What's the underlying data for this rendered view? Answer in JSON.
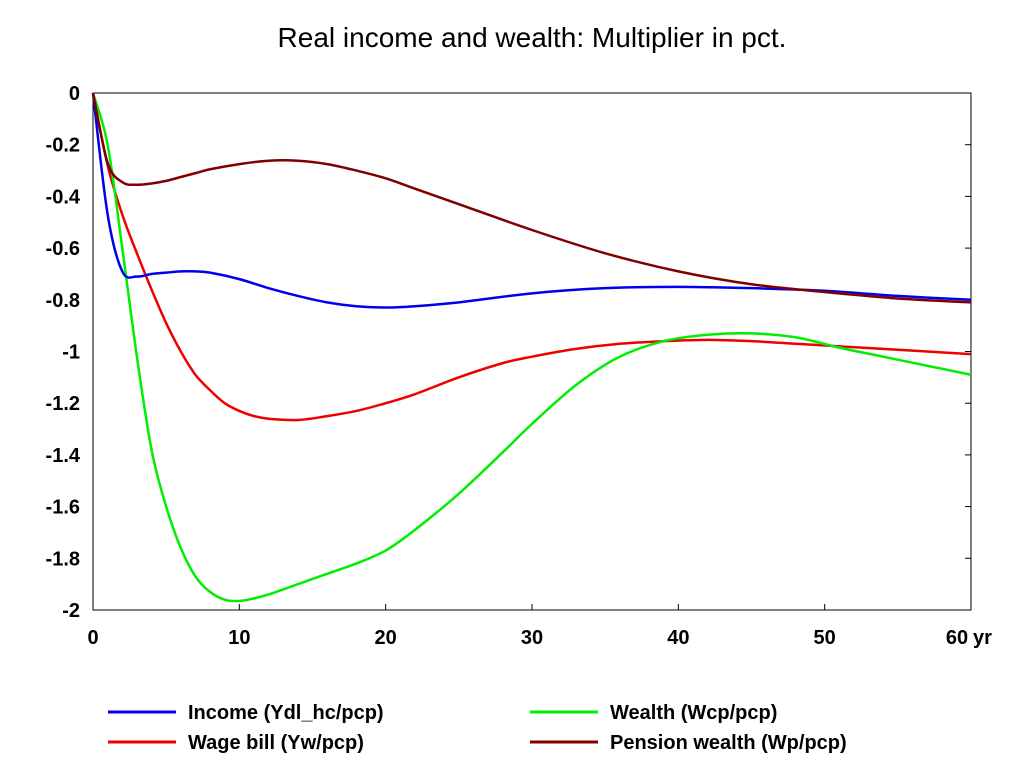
{
  "chart_data": {
    "type": "line",
    "title": "Real income and wealth: Multiplier in pct.",
    "xlabel": "",
    "ylabel": "",
    "x_unit_label": "yr",
    "xlim": [
      0,
      60
    ],
    "ylim": [
      -2,
      0
    ],
    "x_ticks": [
      0,
      10,
      20,
      30,
      40,
      50,
      60
    ],
    "x_tick_labels": [
      "0",
      "10",
      "20",
      "30",
      "40",
      "50",
      "60"
    ],
    "y_ticks": [
      0,
      -0.2,
      -0.4,
      -0.6,
      -0.8,
      -1,
      -1.2,
      -1.4,
      -1.6,
      -1.8,
      -2
    ],
    "y_tick_labels": [
      "0",
      "-0.2",
      "-0.4",
      "-0.6",
      "-0.8",
      "-1",
      "-1.2",
      "-1.4",
      "-1.6",
      "-1.8",
      "-2"
    ],
    "grid": false,
    "legend_position": "bottom",
    "series": [
      {
        "name": "Income (Ydl_hc/pcp)",
        "color": "#0000ee",
        "x": [
          0,
          1,
          2,
          3,
          4,
          5,
          6,
          7,
          8,
          10,
          12,
          14,
          16,
          18,
          20,
          22,
          25,
          30,
          35,
          40,
          45,
          50,
          55,
          60
        ],
        "y": [
          0,
          -0.47,
          -0.69,
          -0.71,
          -0.7,
          -0.695,
          -0.69,
          -0.69,
          -0.695,
          -0.72,
          -0.755,
          -0.785,
          -0.81,
          -0.825,
          -0.83,
          -0.825,
          -0.81,
          -0.775,
          -0.755,
          -0.75,
          -0.755,
          -0.765,
          -0.785,
          -0.8
        ]
      },
      {
        "name": "Wealth (Wcp/pcp)",
        "color": "#00ee00",
        "x": [
          0,
          1,
          2,
          3,
          4,
          5,
          6,
          7,
          8,
          9,
          10,
          11,
          12,
          14,
          16,
          18,
          20,
          22,
          25,
          28,
          30,
          33,
          36,
          39,
          42,
          45,
          48,
          51,
          54,
          57,
          60
        ],
        "y": [
          0,
          -0.2,
          -0.6,
          -1.02,
          -1.38,
          -1.6,
          -1.76,
          -1.87,
          -1.93,
          -1.96,
          -1.965,
          -1.955,
          -1.94,
          -1.9,
          -1.86,
          -1.82,
          -1.77,
          -1.69,
          -1.55,
          -1.39,
          -1.28,
          -1.13,
          -1.02,
          -0.96,
          -0.935,
          -0.93,
          -0.945,
          -0.985,
          -1.02,
          -1.055,
          -1.09
        ]
      },
      {
        "name": "Wage bill (Yw/pcp)",
        "color": "#ee0000",
        "x": [
          0,
          1,
          2,
          3,
          4,
          5,
          6,
          7,
          8,
          9,
          10,
          11,
          12,
          14,
          16,
          18,
          20,
          22,
          25,
          28,
          30,
          33,
          36,
          39,
          42,
          45,
          48,
          51,
          54,
          57,
          60
        ],
        "y": [
          0,
          -0.28,
          -0.47,
          -0.62,
          -0.76,
          -0.89,
          -1.0,
          -1.09,
          -1.15,
          -1.2,
          -1.23,
          -1.25,
          -1.26,
          -1.265,
          -1.25,
          -1.23,
          -1.2,
          -1.165,
          -1.1,
          -1.045,
          -1.02,
          -0.99,
          -0.97,
          -0.96,
          -0.955,
          -0.96,
          -0.97,
          -0.98,
          -0.99,
          -1.0,
          -1.01
        ]
      },
      {
        "name": "Pension wealth (Wp/pcp)",
        "color": "#800000",
        "x": [
          0,
          1,
          2,
          3,
          4,
          5,
          6,
          7,
          8,
          10,
          12,
          14,
          16,
          18,
          20,
          22,
          25,
          30,
          35,
          40,
          45,
          50,
          55,
          60
        ],
        "y": [
          0,
          -0.27,
          -0.345,
          -0.355,
          -0.35,
          -0.34,
          -0.325,
          -0.31,
          -0.295,
          -0.275,
          -0.262,
          -0.262,
          -0.275,
          -0.3,
          -0.33,
          -0.37,
          -0.43,
          -0.53,
          -0.62,
          -0.69,
          -0.74,
          -0.77,
          -0.795,
          -0.81
        ]
      }
    ]
  }
}
